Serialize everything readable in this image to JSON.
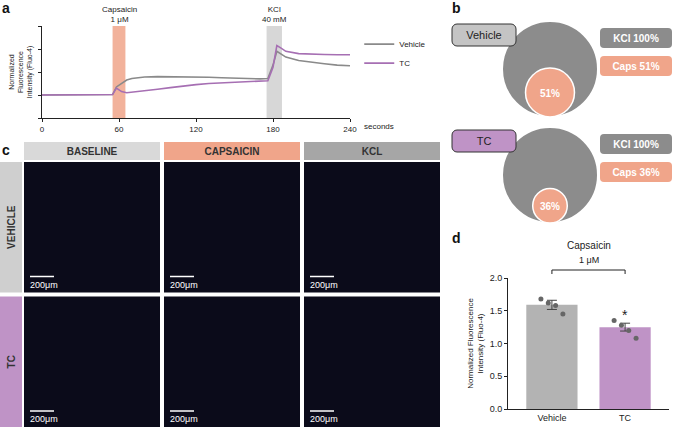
{
  "chart_data": [
    {
      "panel": "a",
      "type": "line",
      "x_label": "seconds",
      "y_label": "Normalized Fluorescence Intensity (Fluo-4)",
      "x": [
        0,
        10,
        20,
        30,
        40,
        50,
        55,
        58,
        62,
        66,
        70,
        80,
        90,
        100,
        110,
        120,
        130,
        140,
        150,
        160,
        170,
        176,
        180,
        183,
        186,
        190,
        200,
        210,
        220,
        230,
        240
      ],
      "series": [
        {
          "name": "Vehicle",
          "color": "#8a8a8a",
          "values": [
            1,
            1,
            1,
            1,
            1,
            1,
            1.02,
            1.35,
            1.5,
            1.65,
            1.72,
            1.78,
            1.8,
            1.8,
            1.8,
            1.79,
            1.77,
            1.75,
            1.73,
            1.72,
            1.7,
            1.72,
            2.3,
            2.9,
            2.8,
            2.65,
            2.5,
            2.42,
            2.36,
            2.3,
            2.27
          ]
        },
        {
          "name": "TC",
          "color": "#a66fb3",
          "values": [
            1,
            1,
            1,
            1,
            1,
            1,
            1.02,
            1.3,
            1.15,
            1.1,
            1.12,
            1.18,
            1.25,
            1.32,
            1.4,
            1.45,
            1.5,
            1.53,
            1.56,
            1.58,
            1.6,
            1.62,
            2.2,
            3.15,
            3.05,
            2.9,
            2.8,
            2.77,
            2.76,
            2.75,
            2.75
          ]
        }
      ],
      "stimuli": [
        {
          "label": "Capsaicin",
          "dose": "1 μM",
          "start": 55,
          "end": 65,
          "color": "#f0a58a"
        },
        {
          "label": "KCl",
          "dose": "40 mM",
          "start": 175,
          "end": 187,
          "color": "#d0d0d0"
        }
      ],
      "xlim": [
        0,
        240
      ],
      "xticks": [
        0,
        60,
        120,
        180,
        240
      ],
      "ylim": [
        0,
        4
      ],
      "yticks": [
        0,
        1,
        2,
        3,
        4
      ],
      "tick_labels": "x",
      "grid": false,
      "legend": "right"
    },
    {
      "panel": "d",
      "type": "bar",
      "title": "Capsaicin",
      "subtitle": "1 μM",
      "y_label": "Normalized Fluorescence Intensity (Fluo-4)",
      "categories": [
        "Vehicle",
        "TC"
      ],
      "values": [
        1.59,
        1.25
      ],
      "errors": [
        0.07,
        0.06
      ],
      "points": [
        [
          1.68,
          1.62,
          1.58,
          1.45
        ],
        [
          1.35,
          1.28,
          1.2,
          1.08
        ]
      ],
      "significance": [
        null,
        "*"
      ],
      "colors": [
        "#b3b3b3",
        "#bf93c6"
      ],
      "ylim": [
        0,
        2
      ],
      "yticks": [
        {
          "value": 0,
          "label": "0.0"
        },
        {
          "value": 0.5,
          "label": "0.5"
        },
        {
          "value": 1,
          "label": "1.0"
        },
        {
          "value": 1.5,
          "label": "1.5"
        },
        {
          "value": 2,
          "label": "2.0"
        }
      ],
      "grid": false
    }
  ],
  "venn": {
    "panel": "b",
    "groups": [
      {
        "name": "Vehicle",
        "color": "#c4c4c4",
        "kcl": {
          "value": 100,
          "label": "KCl 100%",
          "color": "#8c8c8c"
        },
        "caps": {
          "value": 51,
          "label": "Caps 51%",
          "inside": "51%",
          "color": "#f0a58a"
        }
      },
      {
        "name": "TC",
        "color": "#bf93c6",
        "kcl": {
          "value": 100,
          "label": "KCl 100%",
          "color": "#8c8c8c"
        },
        "caps": {
          "value": 36,
          "label": "Caps 36%",
          "inside": "36%",
          "color": "#f0a58a"
        }
      }
    ]
  },
  "image_grid": {
    "panel": "c",
    "columns": [
      {
        "label": "BASELINE",
        "color": "#d9d9d9"
      },
      {
        "label": "CAPSAICIN",
        "color": "#f0a58a"
      },
      {
        "label": "KCL",
        "color": "#a6a6a6"
      }
    ],
    "rows": [
      {
        "label": "VEHICLE",
        "color": "#cfcfcf"
      },
      {
        "label": "TC",
        "color": "#bf93c6"
      }
    ],
    "scale_bar": "200μm"
  }
}
